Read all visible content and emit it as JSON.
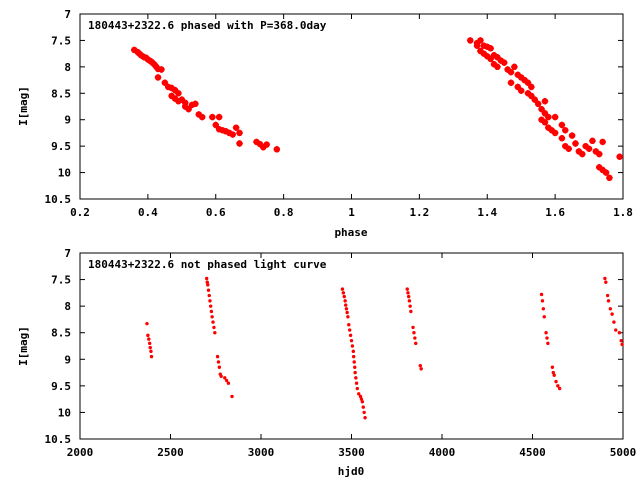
{
  "chart_data": [
    {
      "type": "scatter",
      "title": "180443+2322.6 phased with P=368.0day",
      "xlabel": "phase",
      "ylabel": "I[mag]",
      "xlim": [
        0.2,
        1.8
      ],
      "ylim": [
        7,
        10.5
      ],
      "y_inverted": true,
      "x_ticks": [
        0.2,
        0.4,
        0.6,
        0.8,
        1,
        1.2,
        1.4,
        1.6,
        1.8
      ],
      "x_tick_labels": [
        "0.2",
        "0.4",
        "0.6",
        "0.8",
        "1",
        "1.2",
        "1.4",
        "1.6",
        "1.8"
      ],
      "y_ticks": [
        7,
        7.5,
        8,
        8.5,
        9,
        9.5,
        10,
        10.5
      ],
      "y_tick_labels": [
        "7",
        "7.5",
        "8",
        "8.5",
        "9",
        "9.5",
        "10",
        "10.5"
      ],
      "grid": false,
      "marker_color": "#ff0000",
      "series": [
        {
          "points": [
            [
              0.36,
              7.68
            ],
            [
              0.37,
              7.72
            ],
            [
              0.375,
              7.75
            ],
            [
              0.38,
              7.78
            ],
            [
              0.385,
              7.8
            ],
            [
              0.39,
              7.82
            ],
            [
              0.395,
              7.83
            ],
            [
              0.4,
              7.86
            ],
            [
              0.405,
              7.88
            ],
            [
              0.41,
              7.9
            ],
            [
              0.415,
              7.93
            ],
            [
              0.42,
              7.96
            ],
            [
              0.425,
              8.0
            ],
            [
              0.43,
              8.04
            ],
            [
              0.44,
              8.05
            ],
            [
              0.43,
              8.2
            ],
            [
              0.45,
              8.3
            ],
            [
              0.46,
              8.38
            ],
            [
              0.47,
              8.4
            ],
            [
              0.48,
              8.44
            ],
            [
              0.49,
              8.5
            ],
            [
              0.47,
              8.55
            ],
            [
              0.48,
              8.6
            ],
            [
              0.5,
              8.62
            ],
            [
              0.49,
              8.65
            ],
            [
              0.51,
              8.75
            ],
            [
              0.52,
              8.8
            ],
            [
              0.53,
              8.72
            ],
            [
              0.54,
              8.7
            ],
            [
              0.51,
              8.68
            ],
            [
              0.55,
              8.9
            ],
            [
              0.56,
              8.95
            ],
            [
              0.59,
              8.95
            ],
            [
              0.61,
              8.95
            ],
            [
              0.6,
              9.1
            ],
            [
              0.61,
              9.18
            ],
            [
              0.62,
              9.2
            ],
            [
              0.63,
              9.22
            ],
            [
              0.64,
              9.25
            ],
            [
              0.65,
              9.28
            ],
            [
              0.66,
              9.15
            ],
            [
              0.67,
              9.25
            ],
            [
              0.67,
              9.45
            ],
            [
              0.72,
              9.42
            ],
            [
              0.73,
              9.46
            ],
            [
              0.74,
              9.52
            ],
            [
              0.75,
              9.47
            ],
            [
              0.78,
              9.56
            ],
            [
              1.35,
              7.5
            ],
            [
              1.37,
              7.55
            ],
            [
              1.38,
              7.5
            ],
            [
              1.39,
              7.6
            ],
            [
              1.4,
              7.62
            ],
            [
              1.41,
              7.65
            ],
            [
              1.37,
              7.6
            ],
            [
              1.38,
              7.7
            ],
            [
              1.39,
              7.75
            ],
            [
              1.4,
              7.8
            ],
            [
              1.41,
              7.85
            ],
            [
              1.42,
              7.78
            ],
            [
              1.43,
              7.82
            ],
            [
              1.44,
              7.88
            ],
            [
              1.45,
              7.92
            ],
            [
              1.42,
              7.95
            ],
            [
              1.43,
              8.0
            ],
            [
              1.46,
              8.05
            ],
            [
              1.47,
              8.1
            ],
            [
              1.48,
              8.0
            ],
            [
              1.49,
              8.15
            ],
            [
              1.5,
              8.2
            ],
            [
              1.51,
              8.25
            ],
            [
              1.52,
              8.3
            ],
            [
              1.53,
              8.38
            ],
            [
              1.47,
              8.3
            ],
            [
              1.49,
              8.38
            ],
            [
              1.5,
              8.45
            ],
            [
              1.52,
              8.5
            ],
            [
              1.53,
              8.55
            ],
            [
              1.54,
              8.62
            ],
            [
              1.55,
              8.7
            ],
            [
              1.57,
              8.65
            ],
            [
              1.56,
              8.8
            ],
            [
              1.57,
              8.88
            ],
            [
              1.58,
              8.95
            ],
            [
              1.56,
              9.0
            ],
            [
              1.57,
              9.05
            ],
            [
              1.58,
              9.15
            ],
            [
              1.59,
              9.2
            ],
            [
              1.6,
              9.25
            ],
            [
              1.6,
              8.95
            ],
            [
              1.62,
              9.1
            ],
            [
              1.63,
              9.2
            ],
            [
              1.62,
              9.35
            ],
            [
              1.63,
              9.5
            ],
            [
              1.64,
              9.55
            ],
            [
              1.65,
              9.3
            ],
            [
              1.66,
              9.45
            ],
            [
              1.67,
              9.6
            ],
            [
              1.68,
              9.65
            ],
            [
              1.69,
              9.5
            ],
            [
              1.7,
              9.55
            ],
            [
              1.71,
              9.4
            ],
            [
              1.72,
              9.6
            ],
            [
              1.73,
              9.65
            ],
            [
              1.74,
              9.42
            ],
            [
              1.73,
              9.9
            ],
            [
              1.74,
              9.95
            ],
            [
              1.75,
              10.0
            ],
            [
              1.76,
              10.1
            ],
            [
              1.79,
              9.7
            ]
          ]
        }
      ]
    },
    {
      "type": "scatter",
      "title": "180443+2322.6 not phased light curve",
      "xlabel": "hjd0",
      "ylabel": "I[mag]",
      "xlim": [
        2000,
        5000
      ],
      "ylim": [
        7,
        10.5
      ],
      "y_inverted": true,
      "x_ticks": [
        2000,
        2500,
        3000,
        3500,
        4000,
        4500,
        5000
      ],
      "x_tick_labels": [
        "2000",
        "2500",
        "3000",
        "3500",
        "4000",
        "4500",
        "5000"
      ],
      "y_ticks": [
        7,
        7.5,
        8,
        8.5,
        9,
        9.5,
        10,
        10.5
      ],
      "y_tick_labels": [
        "7",
        "7.5",
        "8",
        "8.5",
        "9",
        "9.5",
        "10",
        "10.5"
      ],
      "grid": false,
      "marker_color": "#ff0000",
      "series": [
        {
          "points": [
            [
              2370,
              8.33
            ],
            [
              2375,
              8.55
            ],
            [
              2380,
              8.62
            ],
            [
              2385,
              8.7
            ],
            [
              2388,
              8.78
            ],
            [
              2392,
              8.85
            ],
            [
              2395,
              8.95
            ],
            [
              2700,
              7.48
            ],
            [
              2703,
              7.55
            ],
            [
              2706,
              7.6
            ],
            [
              2710,
              7.7
            ],
            [
              2714,
              7.8
            ],
            [
              2718,
              7.9
            ],
            [
              2722,
              8.0
            ],
            [
              2726,
              8.1
            ],
            [
              2730,
              8.2
            ],
            [
              2735,
              8.3
            ],
            [
              2740,
              8.4
            ],
            [
              2745,
              8.5
            ],
            [
              2760,
              8.95
            ],
            [
              2765,
              9.05
            ],
            [
              2770,
              9.15
            ],
            [
              2775,
              9.28
            ],
            [
              2780,
              9.32
            ],
            [
              2800,
              9.35
            ],
            [
              2810,
              9.4
            ],
            [
              2820,
              9.45
            ],
            [
              2840,
              9.7
            ],
            [
              3450,
              7.68
            ],
            [
              3455,
              7.75
            ],
            [
              3460,
              7.82
            ],
            [
              3465,
              7.9
            ],
            [
              3468,
              7.98
            ],
            [
              3472,
              8.05
            ],
            [
              3476,
              8.12
            ],
            [
              3480,
              8.2
            ],
            [
              3485,
              8.35
            ],
            [
              3490,
              8.45
            ],
            [
              3495,
              8.55
            ],
            [
              3500,
              8.65
            ],
            [
              3505,
              8.75
            ],
            [
              3510,
              8.85
            ],
            [
              3512,
              8.95
            ],
            [
              3515,
              9.05
            ],
            [
              3518,
              9.15
            ],
            [
              3520,
              9.25
            ],
            [
              3524,
              9.35
            ],
            [
              3528,
              9.45
            ],
            [
              3532,
              9.55
            ],
            [
              3540,
              9.65
            ],
            [
              3550,
              9.7
            ],
            [
              3555,
              9.75
            ],
            [
              3560,
              9.8
            ],
            [
              3565,
              9.9
            ],
            [
              3570,
              10.0
            ],
            [
              3575,
              10.1
            ],
            [
              3808,
              7.68
            ],
            [
              3812,
              7.75
            ],
            [
              3816,
              7.82
            ],
            [
              3820,
              7.9
            ],
            [
              3824,
              8.0
            ],
            [
              3828,
              8.1
            ],
            [
              3840,
              8.4
            ],
            [
              3845,
              8.5
            ],
            [
              3850,
              8.6
            ],
            [
              3855,
              8.7
            ],
            [
              3880,
              9.12
            ],
            [
              3885,
              9.18
            ],
            [
              4550,
              7.78
            ],
            [
              4555,
              7.9
            ],
            [
              4560,
              8.05
            ],
            [
              4565,
              8.2
            ],
            [
              4575,
              8.5
            ],
            [
              4580,
              8.6
            ],
            [
              4585,
              8.7
            ],
            [
              4610,
              9.15
            ],
            [
              4615,
              9.25
            ],
            [
              4620,
              9.3
            ],
            [
              4630,
              9.42
            ],
            [
              4640,
              9.5
            ],
            [
              4650,
              9.55
            ],
            [
              4900,
              7.48
            ],
            [
              4905,
              7.55
            ],
            [
              4915,
              7.8
            ],
            [
              4920,
              7.9
            ],
            [
              4930,
              8.05
            ],
            [
              4940,
              8.15
            ],
            [
              4950,
              8.3
            ],
            [
              4960,
              8.45
            ],
            [
              4980,
              8.5
            ],
            [
              4990,
              8.65
            ],
            [
              4995,
              8.72
            ]
          ]
        }
      ]
    }
  ]
}
